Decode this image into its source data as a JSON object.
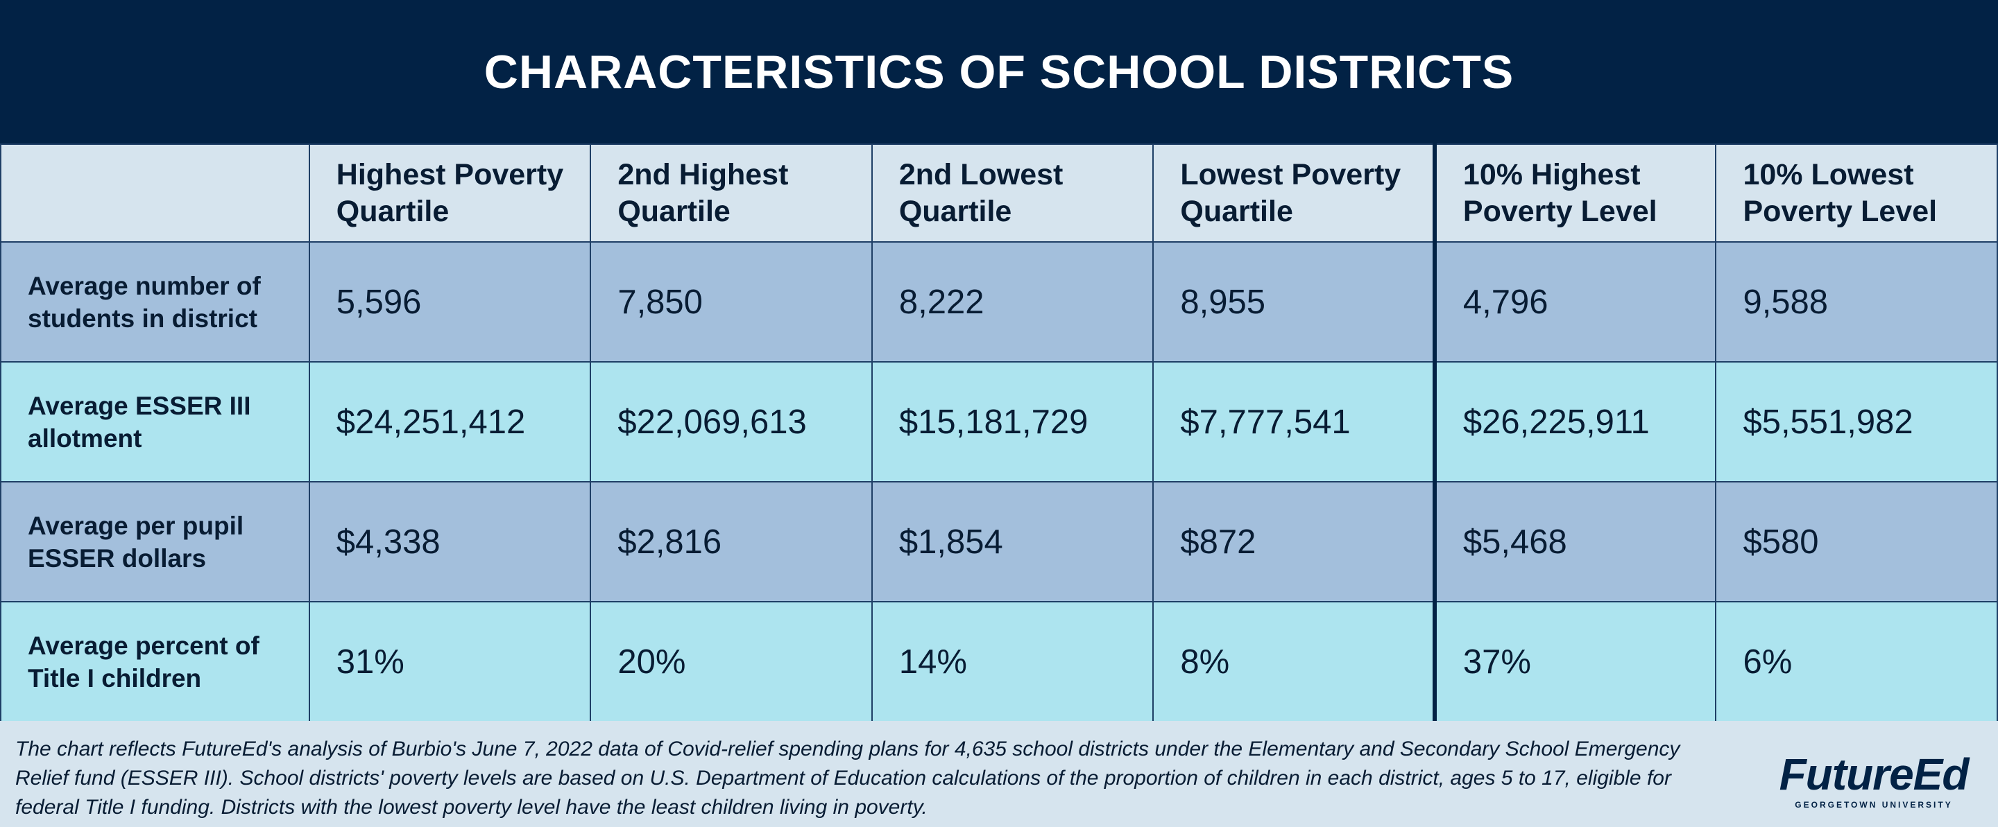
{
  "title": "CHARACTERISTICS OF SCHOOL DISTRICTS",
  "chart_data": {
    "type": "table",
    "title": "CHARACTERISTICS OF SCHOOL DISTRICTS",
    "columns": [
      "Highest Poverty Quartile",
      "2nd Highest Quartile",
      "2nd Lowest Quartile",
      "Lowest Poverty Quartile",
      "10% Highest Poverty Level",
      "10% Lowest Poverty Level"
    ],
    "rows": [
      {
        "label": "Average number of students in district",
        "values": [
          "5,596",
          "7,850",
          "8,222",
          "8,955",
          "4,796",
          "9,588"
        ]
      },
      {
        "label": "Average ESSER III allotment",
        "values": [
          "$24,251,412",
          "$22,069,613",
          "$15,181,729",
          "$7,777,541",
          "$26,225,911",
          "$5,551,982"
        ]
      },
      {
        "label": "Average per pupil ESSER dollars",
        "values": [
          "$4,338",
          "$2,816",
          "$1,854",
          "$872",
          "$5,468",
          "$580"
        ]
      },
      {
        "label": "Average percent of Title I children",
        "values": [
          "31%",
          "20%",
          "14%",
          "8%",
          "37%",
          "6%"
        ]
      }
    ]
  },
  "footnote": "The chart reflects FutureEd's analysis of Burbio's June 7, 2022 data of Covid-relief spending plans for 4,635 school districts under the Elementary and Secondary School Emergency Relief fund (ESSER III). School districts' poverty levels are based on U.S. Department of Education calculations of the proportion of children in each district, ages 5 to 17, eligible for federal Title I funding. Districts with the lowest poverty level have the least children living in poverty.",
  "logo": {
    "name": "FutureEd",
    "subtitle": "GEORGETOWN UNIVERSITY"
  },
  "colors": {
    "title_bar": "#022245",
    "header_bg": "#d6e4ee",
    "row_dark": "#a3bfdc",
    "row_light": "#ade4ef",
    "text": "#081c33"
  }
}
